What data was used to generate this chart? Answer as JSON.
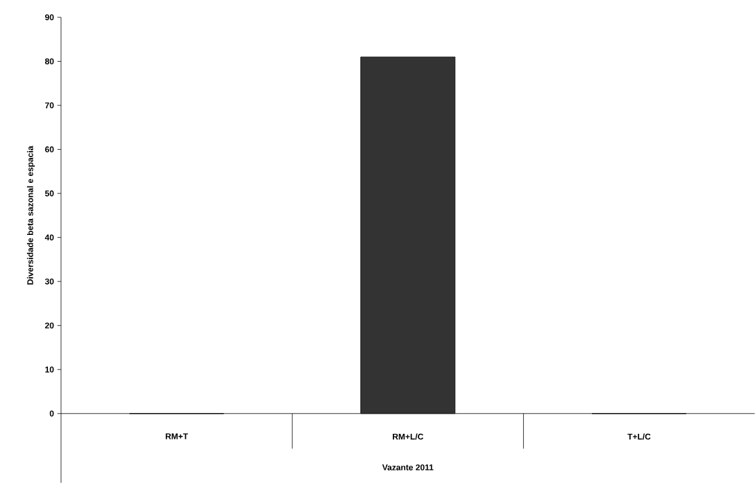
{
  "chart_data": {
    "type": "bar",
    "xlabel": "Vazante 2011",
    "ylabel": "Diversidade beta sazonal e espacia",
    "categories": [
      "RM+T",
      "RM+L/C",
      "T+L/C"
    ],
    "values": [
      0,
      81,
      0
    ],
    "color": "#333333",
    "ylim": [
      0,
      90
    ],
    "yticks": [
      0,
      10,
      20,
      30,
      40,
      50,
      60,
      70,
      80,
      90
    ],
    "grid": false
  }
}
